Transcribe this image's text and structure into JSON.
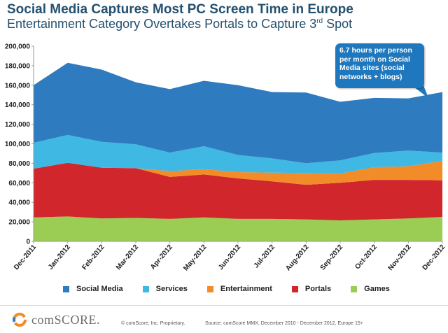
{
  "header": {
    "title": "Social Media Captures Most PC Screen Time in Europe",
    "subtitle_main": "Entertainment Category Overtakes Portals to Capture 3",
    "subtitle_sup": "rd",
    "subtitle_end": " Spot"
  },
  "callout": {
    "text": "6.7 hours per person per month on Social Media sites (social networks + blogs)"
  },
  "legend": [
    {
      "name": "Social Media",
      "color": "#2e7cbf"
    },
    {
      "name": "Services",
      "color": "#3fb8e3"
    },
    {
      "name": "Entertainment",
      "color": "#f28c28"
    },
    {
      "name": "Portals",
      "color": "#d1262b"
    },
    {
      "name": "Games",
      "color": "#9bcc53"
    }
  ],
  "footer": {
    "logo_text": "comSCORE.",
    "copyright": "© comScore, Inc.   Proprietary.",
    "source": "Source: comScore MMX, December 2010 - December 2012, Europe 15+"
  },
  "chart_data": {
    "type": "area",
    "stacked": true,
    "categories": [
      "Dec-2011",
      "Jan-2012",
      "Feb-2012",
      "Mar-2012",
      "Apr-2012",
      "May-2012",
      "Jun-2012",
      "Jul-2012",
      "Aug-2012",
      "Sep-2012",
      "Oct-2012",
      "Nov-2012",
      "Dec-2012"
    ],
    "series": [
      {
        "name": "Games",
        "values": [
          24500,
          25500,
          23500,
          24000,
          23000,
          24500,
          23000,
          23000,
          22500,
          21500,
          22500,
          23500,
          25000
        ]
      },
      {
        "name": "Portals",
        "values": [
          50000,
          55000,
          52000,
          51000,
          43000,
          44000,
          41500,
          38500,
          35500,
          38500,
          40500,
          39500,
          37500
        ]
      },
      {
        "name": "Entertainment",
        "values": [
          0,
          0,
          0,
          0,
          6000,
          5500,
          6500,
          9000,
          12000,
          9500,
          13000,
          14000,
          20000
        ]
      },
      {
        "name": "Services",
        "values": [
          26500,
          28500,
          26500,
          24500,
          19000,
          23500,
          17500,
          14500,
          10000,
          13500,
          14500,
          16000,
          8500
        ]
      },
      {
        "name": "Social Media",
        "values": [
          59000,
          74000,
          74000,
          63500,
          65000,
          67000,
          71500,
          68000,
          72500,
          60000,
          56500,
          53500,
          62000
        ]
      }
    ],
    "totals": [
      160000,
      183000,
      176000,
      163000,
      156000,
      164500,
      160000,
      153000,
      152500,
      143000,
      147000,
      146500,
      153000
    ],
    "ylim": [
      0,
      200000
    ],
    "yticks": [
      0,
      20000,
      40000,
      60000,
      80000,
      100000,
      120000,
      140000,
      160000,
      180000,
      200000
    ],
    "ytick_labels": [
      "0",
      "20,000",
      "40,000",
      "60,000",
      "80,000",
      "100,000",
      "120,000",
      "140,000",
      "160,000",
      "180,000",
      "200,000"
    ],
    "grid": false,
    "legend_position": "bottom"
  }
}
